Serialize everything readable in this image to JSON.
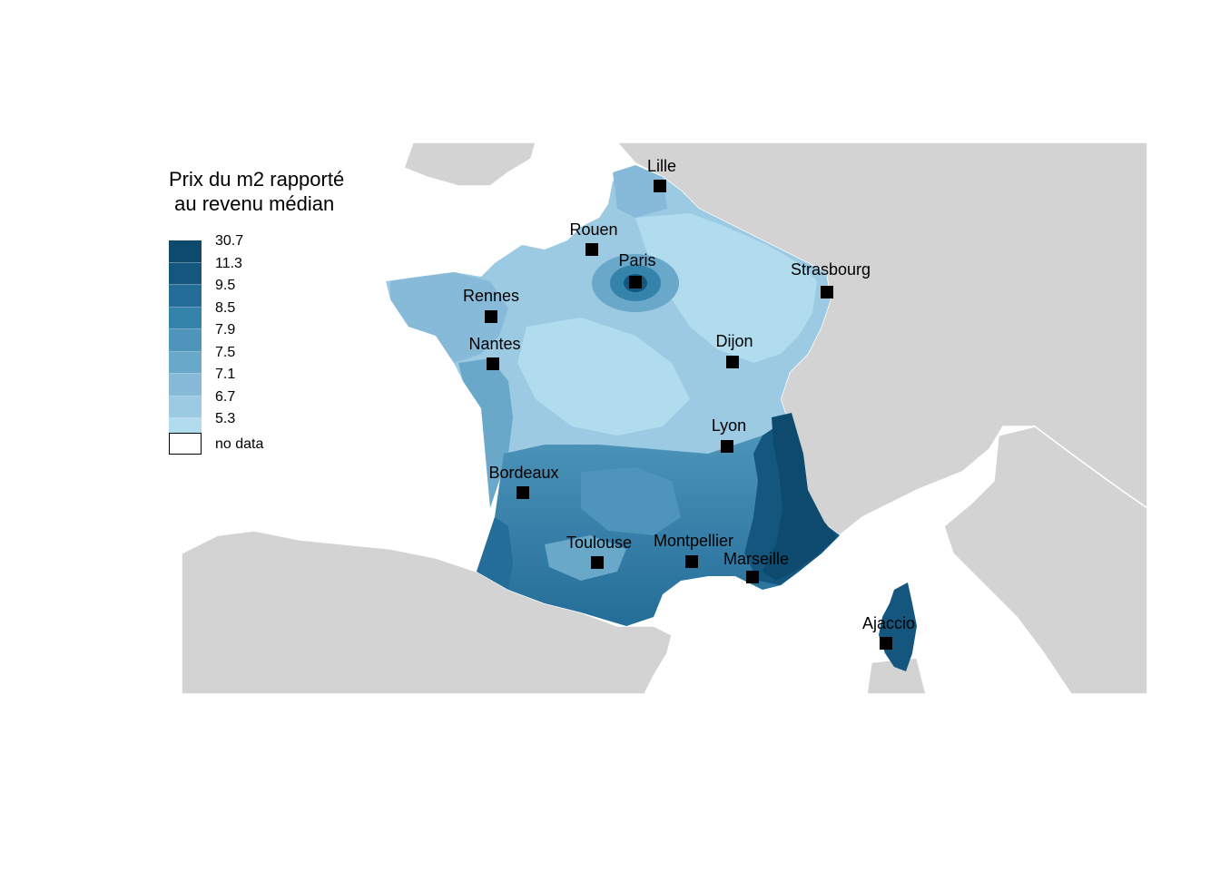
{
  "legend": {
    "title": "Prix du m2 rapporté\n au revenu médian",
    "classes": [
      "30.7",
      "11.3",
      "9.5",
      "8.5",
      "7.9",
      "7.5",
      "7.1",
      "6.7",
      "5.3"
    ],
    "colors": [
      "#0d4a6e",
      "#15567e",
      "#236d98",
      "#3483ab",
      "#4f95bb",
      "#6aa8ca",
      "#86bad8",
      "#9ccae3",
      "#b0dcee"
    ],
    "no_data_label": "no data"
  },
  "colors": {
    "background_land": "#d3d3d3",
    "sea": "#ffffff",
    "borders": "#ffffff"
  },
  "cities": [
    {
      "name": "Lille"
    },
    {
      "name": "Rouen"
    },
    {
      "name": "Paris"
    },
    {
      "name": "Strasbourg"
    },
    {
      "name": "Rennes"
    },
    {
      "name": "Nantes"
    },
    {
      "name": "Dijon"
    },
    {
      "name": "Lyon"
    },
    {
      "name": "Bordeaux"
    },
    {
      "name": "Toulouse"
    },
    {
      "name": "Montpellier"
    },
    {
      "name": "Marseille"
    },
    {
      "name": "Ajaccio"
    }
  ]
}
